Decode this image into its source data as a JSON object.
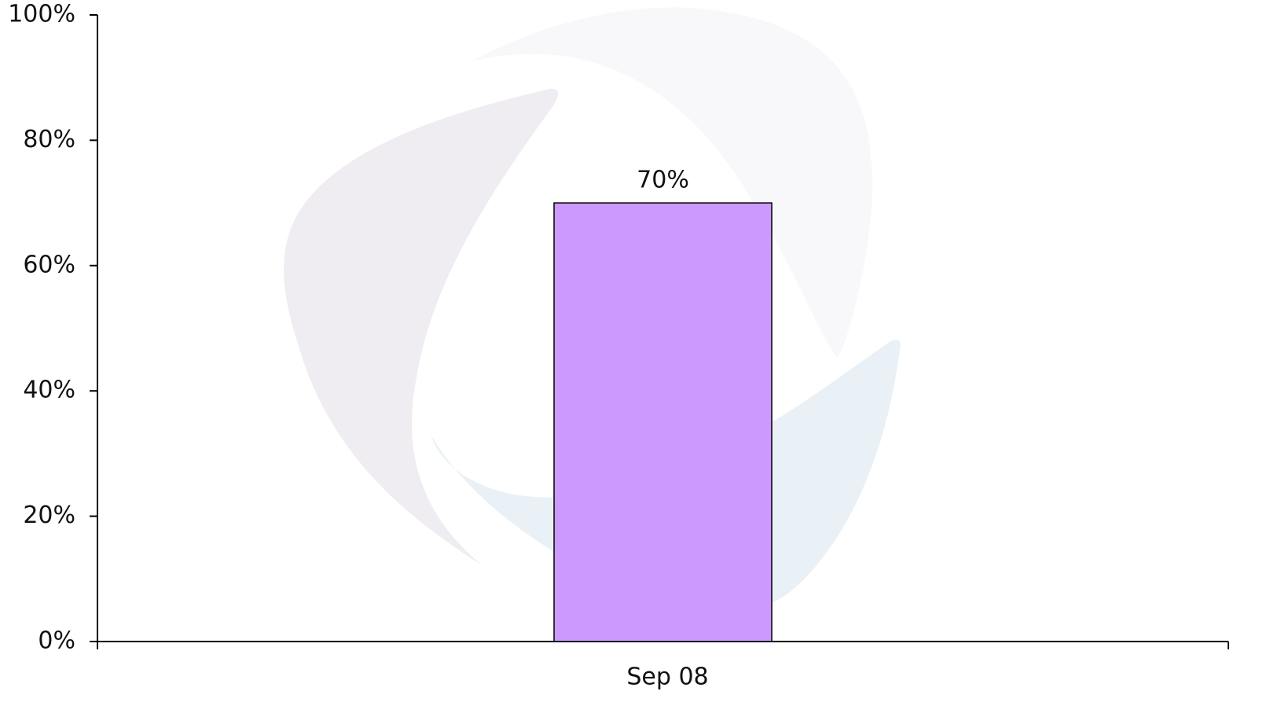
{
  "chart_data": {
    "type": "bar",
    "categories": [
      "Sep 08"
    ],
    "values": [
      70
    ],
    "value_labels": [
      "70%"
    ],
    "color": "#cc99ff",
    "ylim": [
      0,
      100
    ],
    "yticks": [
      {
        "value": 0,
        "label": "0%"
      },
      {
        "value": 20,
        "label": "20%"
      },
      {
        "value": 40,
        "label": "40%"
      },
      {
        "value": 60,
        "label": "60%"
      },
      {
        "value": 80,
        "label": "80%"
      },
      {
        "value": 100,
        "label": "100%"
      }
    ]
  }
}
